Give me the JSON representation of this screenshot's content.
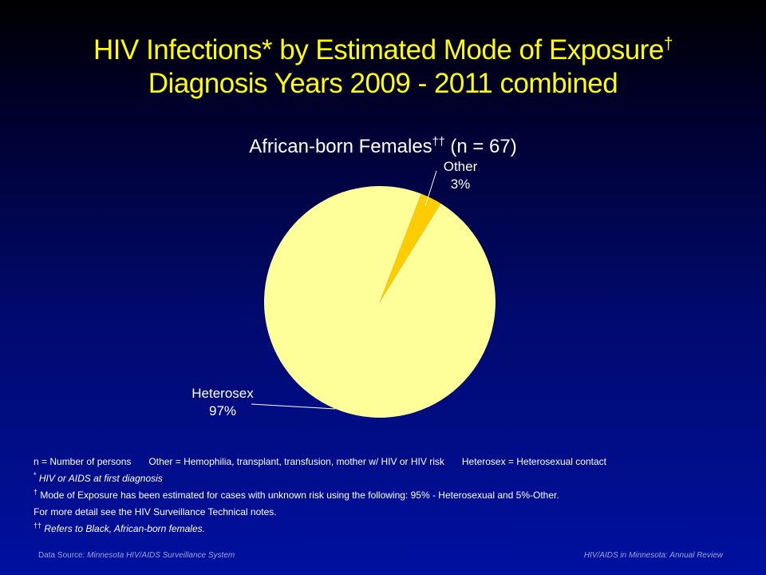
{
  "title": {
    "line1": "HIV Infections* by Estimated Mode of Exposure",
    "line1_mark": "†",
    "line2": "Diagnosis Years 2009 - 2011 combined"
  },
  "subtitle": {
    "text": "African-born Females",
    "mark": "††",
    "n": " (n = 67)"
  },
  "chart_data": {
    "type": "pie",
    "title": "African-born Females †† (n = 67)",
    "slices": [
      {
        "name": "Heterosex",
        "value": 97,
        "label": "97%",
        "color": "#ffff99"
      },
      {
        "name": "Other",
        "value": 3,
        "label": "3%",
        "color": "#ffcc00"
      }
    ]
  },
  "notes": {
    "defs": [
      "n = Number of persons",
      "Other = Hemophilia, transplant, transfusion, mother w/ HIV or HIV risk",
      "Heterosex = Heterosexual contact"
    ],
    "star_mark": "*",
    "star_text": " HIV or AIDS at first diagnosis",
    "dagger_mark": "†",
    "dagger_text": " Mode of Exposure has been estimated for cases with unknown risk using the following: 95% - Heterosexual and 5%-Other.",
    "detail_text": "For more detail see the HIV Surveillance Technical notes.",
    "ddagger_mark": "††",
    "ddagger_text": " Refers to Black, African-born females."
  },
  "footer": {
    "source_label": "Data Source: ",
    "source_name": "Minnesota HIV/AIDS Surveillance  System",
    "publication": "HIV/AIDS in Minnesota: Annual Review"
  }
}
